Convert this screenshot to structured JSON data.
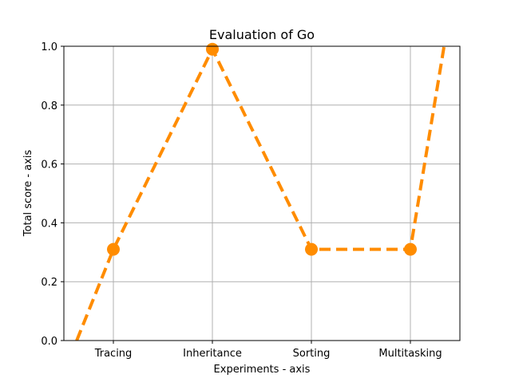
{
  "chart_data": {
    "type": "line",
    "title": "Evaluation of Go",
    "xlabel": "Experiments - axis",
    "ylabel": "Total score - axis",
    "categories": [
      "Tracing",
      "Inheritance",
      "Sorting",
      "Multitasking"
    ],
    "values": [
      0.31,
      0.99,
      0.31,
      0.31
    ],
    "line_extension": {
      "left_point": {
        "x": -0.37,
        "y": 0.0
      },
      "right_point": {
        "x": 3.34,
        "y": 1.0
      }
    },
    "ylim": [
      0,
      1
    ],
    "xlim": [
      -0.5,
      3.5
    ],
    "yticks": [
      "0.0",
      "0.2",
      "0.4",
      "0.6",
      "0.8",
      "1.0"
    ],
    "grid": true,
    "line_style": "dashed",
    "marker": "circle",
    "color": "#ff8c00",
    "grid_color": "#b0b0b0"
  }
}
